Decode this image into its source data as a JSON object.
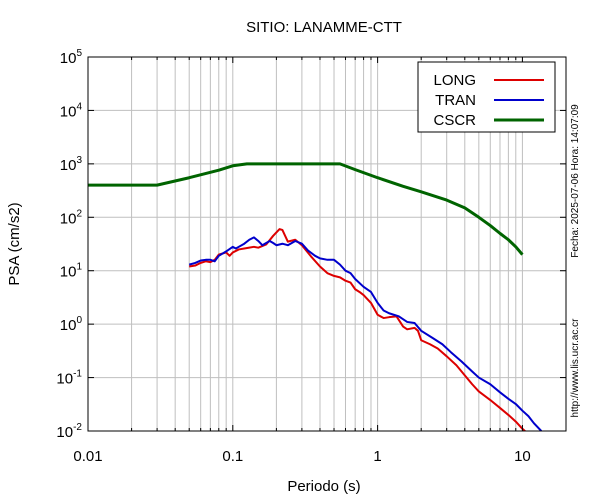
{
  "chart_data": {
    "type": "line",
    "title": "SITIO: LANAMME-CTT",
    "xlabel": "Periodo (s)",
    "ylabel": "PSA (cm/s2)",
    "x_scale": "log",
    "y_scale": "log",
    "xlim": [
      0.01,
      20
    ],
    "ylim": [
      0.01,
      100000
    ],
    "grid": true,
    "legend_position": "top-right",
    "x_ticks": [
      {
        "value": 0.01,
        "label": "0.01"
      },
      {
        "value": 0.1,
        "label": "0.1"
      },
      {
        "value": 1,
        "label": "1"
      },
      {
        "value": 10,
        "label": "10"
      }
    ],
    "y_ticks": [
      {
        "value": 0.01,
        "base": "10",
        "exp": "-2"
      },
      {
        "value": 0.1,
        "base": "10",
        "exp": "-1"
      },
      {
        "value": 1,
        "base": "10",
        "exp": "0"
      },
      {
        "value": 10,
        "base": "10",
        "exp": "1"
      },
      {
        "value": 100,
        "base": "10",
        "exp": "2"
      },
      {
        "value": 1000,
        "base": "10",
        "exp": "3"
      },
      {
        "value": 10000,
        "base": "10",
        "exp": "4"
      },
      {
        "value": 100000,
        "base": "10",
        "exp": "5"
      }
    ],
    "series": [
      {
        "name": "LONG",
        "color": "#dd0000",
        "points": [
          [
            0.05,
            12
          ],
          [
            0.055,
            12.5
          ],
          [
            0.06,
            14
          ],
          [
            0.065,
            15
          ],
          [
            0.07,
            14.5
          ],
          [
            0.075,
            16
          ],
          [
            0.08,
            20
          ],
          [
            0.09,
            22
          ],
          [
            0.095,
            19
          ],
          [
            0.1,
            22
          ],
          [
            0.11,
            25
          ],
          [
            0.12,
            26
          ],
          [
            0.13,
            27
          ],
          [
            0.14,
            28
          ],
          [
            0.15,
            27
          ],
          [
            0.17,
            31
          ],
          [
            0.19,
            45
          ],
          [
            0.21,
            60
          ],
          [
            0.22,
            58
          ],
          [
            0.24,
            35
          ],
          [
            0.27,
            38
          ],
          [
            0.3,
            30
          ],
          [
            0.35,
            18
          ],
          [
            0.4,
            12
          ],
          [
            0.45,
            9
          ],
          [
            0.5,
            8
          ],
          [
            0.55,
            7.5
          ],
          [
            0.6,
            6.5
          ],
          [
            0.65,
            6
          ],
          [
            0.7,
            4.5
          ],
          [
            0.75,
            4
          ],
          [
            0.8,
            3.5
          ],
          [
            0.9,
            2.5
          ],
          [
            1.0,
            1.5
          ],
          [
            1.1,
            1.3
          ],
          [
            1.2,
            1.35
          ],
          [
            1.35,
            1.4
          ],
          [
            1.5,
            0.9
          ],
          [
            1.6,
            0.8
          ],
          [
            1.8,
            0.85
          ],
          [
            1.9,
            0.75
          ],
          [
            2.0,
            0.5
          ],
          [
            2.3,
            0.42
          ],
          [
            2.6,
            0.35
          ],
          [
            3.0,
            0.25
          ],
          [
            3.5,
            0.17
          ],
          [
            4.0,
            0.11
          ],
          [
            4.5,
            0.075
          ],
          [
            5.0,
            0.055
          ],
          [
            6.0,
            0.038
          ],
          [
            7.0,
            0.027
          ],
          [
            8.0,
            0.02
          ],
          [
            9.0,
            0.015
          ],
          [
            10.0,
            0.011
          ],
          [
            10.5,
            0.0098
          ]
        ]
      },
      {
        "name": "TRAN",
        "color": "#0000cc",
        "points": [
          [
            0.05,
            13
          ],
          [
            0.055,
            14
          ],
          [
            0.06,
            15.5
          ],
          [
            0.065,
            16
          ],
          [
            0.07,
            16
          ],
          [
            0.075,
            15
          ],
          [
            0.08,
            19
          ],
          [
            0.09,
            23
          ],
          [
            0.1,
            28
          ],
          [
            0.105,
            26
          ],
          [
            0.11,
            28
          ],
          [
            0.12,
            32
          ],
          [
            0.13,
            38
          ],
          [
            0.14,
            42
          ],
          [
            0.15,
            36
          ],
          [
            0.16,
            30
          ],
          [
            0.17,
            33
          ],
          [
            0.18,
            36
          ],
          [
            0.19,
            33
          ],
          [
            0.2,
            30
          ],
          [
            0.22,
            32
          ],
          [
            0.24,
            30
          ],
          [
            0.27,
            36
          ],
          [
            0.3,
            32
          ],
          [
            0.33,
            24
          ],
          [
            0.37,
            19
          ],
          [
            0.4,
            17
          ],
          [
            0.45,
            16
          ],
          [
            0.5,
            16
          ],
          [
            0.55,
            13
          ],
          [
            0.6,
            10
          ],
          [
            0.65,
            9
          ],
          [
            0.7,
            7
          ],
          [
            0.8,
            5
          ],
          [
            0.9,
            4
          ],
          [
            1.0,
            2.5
          ],
          [
            1.1,
            1.8
          ],
          [
            1.2,
            1.6
          ],
          [
            1.4,
            1.4
          ],
          [
            1.6,
            1.1
          ],
          [
            1.8,
            1.05
          ],
          [
            2.0,
            0.75
          ],
          [
            2.4,
            0.55
          ],
          [
            2.8,
            0.42
          ],
          [
            3.2,
            0.3
          ],
          [
            3.8,
            0.2
          ],
          [
            4.5,
            0.13
          ],
          [
            5.0,
            0.1
          ],
          [
            6.0,
            0.075
          ],
          [
            7.0,
            0.053
          ],
          [
            8.0,
            0.04
          ],
          [
            9.0,
            0.032
          ],
          [
            10.0,
            0.024
          ],
          [
            11.0,
            0.019
          ],
          [
            12.0,
            0.014
          ],
          [
            13.5,
            0.01
          ]
        ]
      },
      {
        "name": "CSCR",
        "color": "#006400",
        "points": [
          [
            0.01,
            400
          ],
          [
            0.03,
            400
          ],
          [
            0.05,
            550
          ],
          [
            0.08,
            760
          ],
          [
            0.1,
            920
          ],
          [
            0.125,
            1000
          ],
          [
            0.2,
            1000
          ],
          [
            0.3,
            1000
          ],
          [
            0.55,
            1000
          ],
          [
            0.7,
            780
          ],
          [
            1.0,
            550
          ],
          [
            1.5,
            380
          ],
          [
            2.0,
            300
          ],
          [
            3.0,
            210
          ],
          [
            4.0,
            150
          ],
          [
            5.0,
            100
          ],
          [
            6.0,
            70
          ],
          [
            7.0,
            50
          ],
          [
            8.0,
            38
          ],
          [
            9.0,
            28
          ],
          [
            10.0,
            20
          ]
        ]
      }
    ]
  },
  "side_text": {
    "timestamp": "Fecha: 2025-07-06  Hora: 14:07:09",
    "url": "http://www.lis.ucr.ac.cr"
  }
}
